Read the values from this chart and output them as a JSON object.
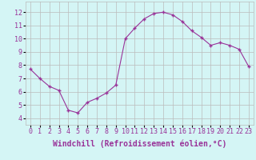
{
  "x": [
    0,
    1,
    2,
    3,
    4,
    5,
    6,
    7,
    8,
    9,
    10,
    11,
    12,
    13,
    14,
    15,
    16,
    17,
    18,
    19,
    20,
    21,
    22,
    23
  ],
  "y": [
    7.7,
    7.0,
    6.4,
    6.1,
    4.6,
    4.4,
    5.2,
    5.5,
    5.9,
    6.5,
    10.0,
    10.8,
    11.5,
    11.9,
    12.0,
    11.8,
    11.3,
    10.6,
    10.1,
    9.5,
    9.7,
    9.5,
    9.2,
    7.9
  ],
  "line_color": "#993399",
  "marker": "+",
  "marker_size": 3,
  "marker_lw": 1.0,
  "line_width": 0.8,
  "bg_color": "#d4f5f5",
  "grid_color": "#bbbbbb",
  "xlabel": "Windchill (Refroidissement éolien,°C)",
  "xlabel_fontsize": 7,
  "tick_fontsize": 6,
  "ylim": [
    3.5,
    12.8
  ],
  "xlim": [
    -0.5,
    23.5
  ],
  "yticks": [
    4,
    5,
    6,
    7,
    8,
    9,
    10,
    11,
    12
  ],
  "xticks": [
    0,
    1,
    2,
    3,
    4,
    5,
    6,
    7,
    8,
    9,
    10,
    11,
    12,
    13,
    14,
    15,
    16,
    17,
    18,
    19,
    20,
    21,
    22,
    23
  ],
  "fig_width": 3.2,
  "fig_height": 2.0,
  "dpi": 100
}
